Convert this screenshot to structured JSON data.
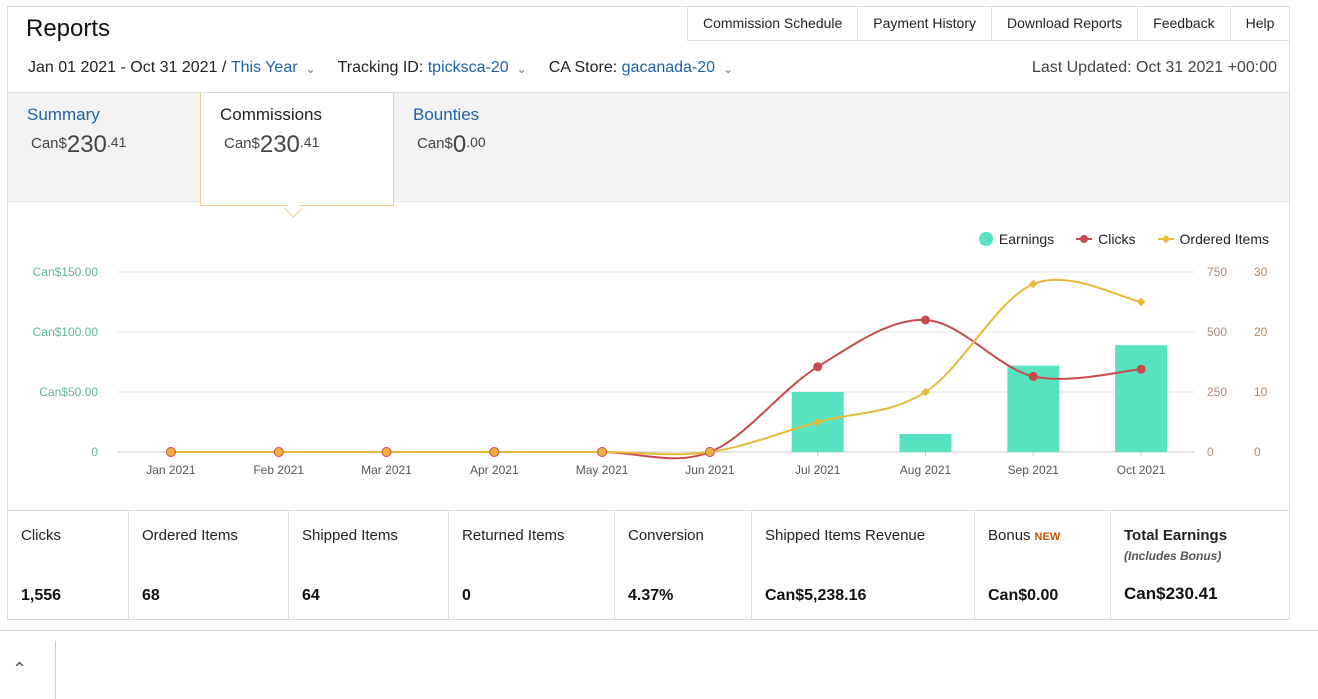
{
  "header": {
    "title": "Reports",
    "tabs": [
      "Commission Schedule",
      "Payment History",
      "Download Reports",
      "Feedback",
      "Help"
    ]
  },
  "filters": {
    "date_range": "Jan 01 2021 - Oct 31 2021",
    "separator": "/",
    "period": "This Year",
    "tracking_label": "Tracking ID:",
    "tracking_value": "tpicksca-20",
    "store_label": "CA Store:",
    "store_value": "gacanada-20",
    "last_updated": "Last Updated: Oct 31 2021 +00:00"
  },
  "metric_tabs": [
    {
      "label": "Summary",
      "currency": "Can$",
      "whole": "230",
      "decimal": ".41"
    },
    {
      "label": "Commissions",
      "currency": "Can$",
      "whole": "230",
      "decimal": ".41"
    },
    {
      "label": "Bounties",
      "currency": "Can$",
      "whole": "0",
      "decimal": ".00"
    }
  ],
  "chart_data": {
    "type": "bar+line",
    "categories": [
      "Jan 2021",
      "Feb 2021",
      "Mar 2021",
      "Apr 2021",
      "May 2021",
      "Jun 2021",
      "Jul 2021",
      "Aug 2021",
      "Sep 2021",
      "Oct 2021"
    ],
    "series": [
      {
        "name": "Earnings",
        "type": "bar",
        "axis": "left",
        "values": [
          0,
          0,
          0,
          0,
          0,
          0,
          50,
          15,
          72,
          89
        ]
      },
      {
        "name": "Clicks",
        "type": "line",
        "axis": "right1",
        "values": [
          0,
          0,
          0,
          0,
          0,
          0,
          355,
          550,
          315,
          345
        ]
      },
      {
        "name": "Ordered Items",
        "type": "line",
        "axis": "right2",
        "values": [
          0,
          0,
          0,
          0,
          0,
          0,
          5,
          10,
          28,
          25
        ]
      }
    ],
    "left_axis": {
      "range": [
        0,
        150
      ],
      "ticks": [
        "0",
        "Can$50.00",
        "Can$100.00",
        "Can$150.00"
      ]
    },
    "right1_axis": {
      "range": [
        0,
        750
      ],
      "ticks": [
        "0",
        "250",
        "500",
        "750"
      ]
    },
    "right2_axis": {
      "range": [
        0,
        30
      ],
      "ticks": [
        "0",
        "10",
        "20",
        "30"
      ]
    },
    "legend_position": "top-right",
    "grid": true
  },
  "colors": {
    "earnings": "#57e3c0",
    "clicks": "#c9494e",
    "ordered": "#e8b93a",
    "left_axis_text": "#5fb59a",
    "right2_axis_text": "#b8875a",
    "link": "#2162a1",
    "new_badge": "#c45500"
  },
  "stats": [
    {
      "label": "Clicks",
      "value": "1,556"
    },
    {
      "label": "Ordered Items",
      "value": "68"
    },
    {
      "label": "Shipped Items",
      "value": "64"
    },
    {
      "label": "Returned Items",
      "value": "0"
    },
    {
      "label": "Conversion",
      "value": "4.37%"
    },
    {
      "label": "Shipped Items Revenue",
      "value": "Can$5,238.16"
    },
    {
      "label": "Bonus",
      "badge": "NEW",
      "value": "Can$0.00"
    },
    {
      "label": "Total Earnings",
      "sub": "(Includes Bonus)",
      "value": "Can$230.41"
    }
  ],
  "footer": {
    "collapse_glyph": "^"
  }
}
